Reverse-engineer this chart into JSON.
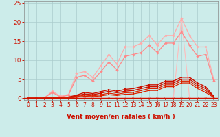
{
  "xlabel": "Vent moyen/en rafales ( km/h )",
  "xlim": [
    -0.5,
    23.5
  ],
  "ylim": [
    -0.5,
    25.5
  ],
  "xticks": [
    0,
    1,
    2,
    3,
    4,
    5,
    6,
    7,
    8,
    9,
    10,
    11,
    12,
    13,
    14,
    15,
    16,
    17,
    18,
    19,
    20,
    21,
    22,
    23
  ],
  "yticks": [
    0,
    5,
    10,
    15,
    20,
    25
  ],
  "bg_color": "#ccecea",
  "grid_color": "#aacccc",
  "series": [
    {
      "x": [
        0,
        1,
        2,
        3,
        4,
        5,
        6,
        7,
        8,
        9,
        10,
        11,
        12,
        13,
        14,
        15,
        16,
        17,
        18,
        19,
        20,
        21,
        22,
        23
      ],
      "y": [
        0,
        0,
        0,
        0,
        0,
        0,
        0,
        0,
        0,
        0,
        0,
        0,
        0,
        0,
        0,
        0,
        0,
        0,
        0,
        21,
        0,
        0,
        0,
        0
      ],
      "color": "#ffbbbb",
      "lw": 0.8,
      "marker": null,
      "ms": 0
    },
    {
      "x": [
        0,
        1,
        2,
        3,
        4,
        5,
        6,
        7,
        8,
        9,
        10,
        11,
        12,
        13,
        14,
        15,
        16,
        17,
        18,
        19,
        20,
        21,
        22,
        23
      ],
      "y": [
        0,
        0,
        0.1,
        1.8,
        0.5,
        1.0,
        6.5,
        7.0,
        5.5,
        8.5,
        11.5,
        9.0,
        13.5,
        13.5,
        14.5,
        16.5,
        14.0,
        16.5,
        16.5,
        21.0,
        16.5,
        13.5,
        13.5,
        5.0
      ],
      "color": "#ffaaaa",
      "lw": 0.9,
      "marker": "D",
      "ms": 2.2
    },
    {
      "x": [
        0,
        1,
        2,
        3,
        4,
        5,
        6,
        7,
        8,
        9,
        10,
        11,
        12,
        13,
        14,
        15,
        16,
        17,
        18,
        19,
        20,
        21,
        22,
        23
      ],
      "y": [
        0,
        0,
        0.1,
        1.5,
        0.3,
        0.8,
        5.5,
        6.0,
        4.5,
        7.0,
        9.5,
        7.5,
        11.0,
        11.5,
        12.0,
        14.0,
        12.0,
        14.5,
        14.5,
        17.5,
        14.0,
        11.0,
        11.5,
        4.5
      ],
      "color": "#ff8888",
      "lw": 0.9,
      "marker": "D",
      "ms": 2.2
    },
    {
      "x": [
        0,
        1,
        2,
        3,
        4,
        5,
        6,
        7,
        8,
        9,
        10,
        11,
        12,
        13,
        14,
        15,
        16,
        17,
        18,
        19,
        20,
        21,
        22,
        23
      ],
      "y": [
        0,
        0,
        0,
        0.2,
        0.1,
        0.3,
        0.8,
        1.5,
        1.2,
        1.7,
        2.2,
        1.8,
        2.3,
        2.5,
        3.0,
        3.5,
        3.5,
        4.5,
        4.5,
        5.5,
        5.5,
        4.0,
        3.0,
        0.5
      ],
      "color": "#cc1100",
      "lw": 1.0,
      "marker": "s",
      "ms": 2.0
    },
    {
      "x": [
        0,
        1,
        2,
        3,
        4,
        5,
        6,
        7,
        8,
        9,
        10,
        11,
        12,
        13,
        14,
        15,
        16,
        17,
        18,
        19,
        20,
        21,
        22,
        23
      ],
      "y": [
        0,
        0,
        0,
        0.1,
        0.05,
        0.2,
        0.6,
        1.1,
        0.9,
        1.3,
        1.8,
        1.4,
        1.8,
        2.0,
        2.5,
        3.0,
        3.0,
        4.0,
        4.0,
        5.0,
        5.0,
        3.5,
        2.5,
        0.4
      ],
      "color": "#cc1100",
      "lw": 1.0,
      "marker": "s",
      "ms": 2.0
    },
    {
      "x": [
        0,
        1,
        2,
        3,
        4,
        5,
        6,
        7,
        8,
        9,
        10,
        11,
        12,
        13,
        14,
        15,
        16,
        17,
        18,
        19,
        20,
        21,
        22,
        23
      ],
      "y": [
        0,
        0,
        0,
        0.05,
        0.02,
        0.1,
        0.4,
        0.8,
        0.6,
        0.9,
        1.3,
        1.0,
        1.4,
        1.5,
        2.0,
        2.5,
        2.5,
        3.5,
        3.5,
        4.5,
        4.5,
        3.0,
        2.0,
        0.3
      ],
      "color": "#dd2200",
      "lw": 0.9,
      "marker": "s",
      "ms": 1.8
    },
    {
      "x": [
        0,
        1,
        2,
        3,
        4,
        5,
        6,
        7,
        8,
        9,
        10,
        11,
        12,
        13,
        14,
        15,
        16,
        17,
        18,
        19,
        20,
        21,
        22,
        23
      ],
      "y": [
        0,
        0,
        0,
        0.03,
        0.01,
        0.07,
        0.25,
        0.5,
        0.4,
        0.6,
        0.9,
        0.7,
        1.0,
        1.1,
        1.5,
        2.0,
        2.0,
        3.0,
        3.0,
        4.0,
        4.0,
        2.5,
        1.5,
        0.2
      ],
      "color": "#dd2200",
      "lw": 0.9,
      "marker": "s",
      "ms": 1.8
    }
  ],
  "arrows_x": [
    0,
    1,
    2,
    3,
    4,
    5,
    6,
    7,
    8,
    9,
    10,
    11,
    12,
    13,
    14,
    15,
    16,
    17,
    18,
    19,
    20,
    21,
    22,
    23
  ],
  "arrow_color": "#cc1100",
  "hline_color": "#cc1100",
  "xlabel_color": "#cc1100",
  "xlabel_fontsize": 6.5,
  "tick_fontsize_x": 5.5,
  "tick_fontsize_y": 6.5
}
